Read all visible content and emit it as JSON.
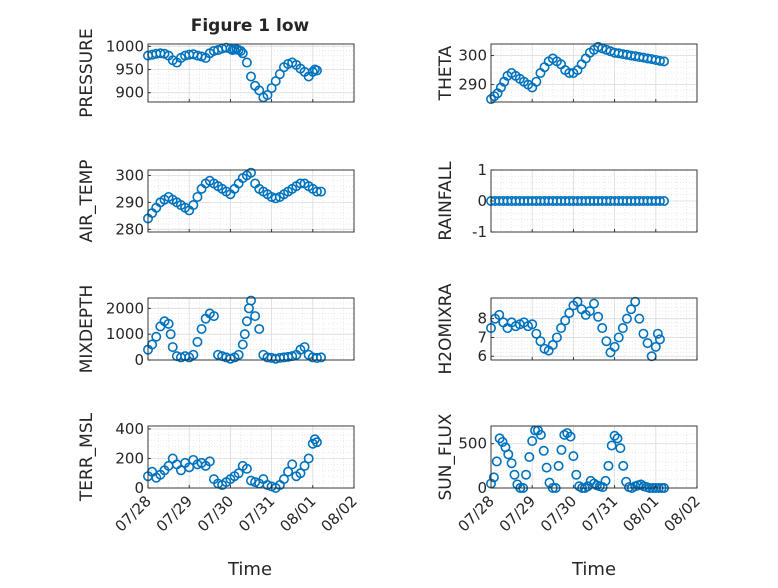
{
  "figure": {
    "title": "Figure 1 low",
    "xlabel": "Time"
  },
  "colors": {
    "marker": "#0072BD",
    "axis": "#262626",
    "grid": "#dcdcdc"
  },
  "chart_data": [
    {
      "type": "scatter",
      "panel": "PRESSURE",
      "ylabel": "PRESSURE",
      "ylim": [
        880,
        1005
      ],
      "yticks": [
        900,
        950,
        1000
      ],
      "ytick_labels": [
        "900",
        "950",
        "1000"
      ],
      "xlim": [
        0,
        5
      ],
      "x": [
        0,
        0.1,
        0.2,
        0.3,
        0.4,
        0.5,
        0.6,
        0.7,
        0.8,
        0.9,
        1.0,
        1.1,
        1.2,
        1.3,
        1.4,
        1.5,
        1.6,
        1.7,
        1.8,
        1.9,
        2.0,
        2.05,
        2.1,
        2.15,
        2.2,
        2.25,
        2.3,
        2.4,
        2.5,
        2.6,
        2.7,
        2.8,
        2.9,
        3.0,
        3.1,
        3.2,
        3.3,
        3.4,
        3.5,
        3.6,
        3.7,
        3.8,
        3.9,
        4.0,
        4.05,
        4.1
      ],
      "y": [
        980,
        982,
        984,
        985,
        984,
        980,
        970,
        965,
        975,
        980,
        982,
        983,
        980,
        978,
        975,
        985,
        990,
        992,
        995,
        997,
        995,
        992,
        993,
        994,
        992,
        990,
        985,
        965,
        935,
        915,
        905,
        890,
        895,
        910,
        925,
        940,
        955,
        962,
        965,
        960,
        952,
        945,
        935,
        945,
        950,
        948
      ]
    },
    {
      "type": "scatter",
      "panel": "THETA",
      "ylabel": "THETA",
      "ylim": [
        284,
        304
      ],
      "yticks": [
        290,
        300
      ],
      "ytick_labels": [
        "290",
        "300"
      ],
      "xlim": [
        0,
        5
      ],
      "x": [
        0,
        0.08,
        0.16,
        0.24,
        0.32,
        0.4,
        0.5,
        0.6,
        0.7,
        0.8,
        0.9,
        1.0,
        1.1,
        1.2,
        1.3,
        1.4,
        1.5,
        1.6,
        1.7,
        1.8,
        1.9,
        2.0,
        2.1,
        2.2,
        2.3,
        2.4,
        2.5,
        2.6,
        2.7,
        2.8,
        2.9,
        3.0,
        3.1,
        3.2,
        3.3,
        3.4,
        3.5,
        3.6,
        3.7,
        3.8,
        3.9,
        4.0,
        4.1,
        4.2
      ],
      "y": [
        285,
        286,
        287,
        289,
        291,
        293,
        294,
        293,
        292,
        291,
        290,
        289,
        291,
        294,
        296,
        298,
        299,
        298,
        297,
        295,
        294,
        294,
        295,
        297,
        299,
        301,
        302,
        303,
        302.5,
        302,
        301.5,
        301,
        300.8,
        300.5,
        300.3,
        300,
        299.8,
        299.5,
        299.3,
        299,
        298.8,
        298.5,
        298.2,
        298
      ]
    },
    {
      "type": "scatter",
      "panel": "AIR_TEMP",
      "ylabel": "AIR_TEMP",
      "ylim": [
        279,
        302
      ],
      "yticks": [
        280,
        290,
        300
      ],
      "ytick_labels": [
        "280",
        "290",
        "300"
      ],
      "xlim": [
        0,
        5
      ],
      "x": [
        0,
        0.1,
        0.2,
        0.3,
        0.4,
        0.5,
        0.6,
        0.7,
        0.8,
        0.9,
        1.0,
        1.1,
        1.2,
        1.3,
        1.4,
        1.5,
        1.6,
        1.7,
        1.8,
        1.9,
        2.0,
        2.1,
        2.2,
        2.3,
        2.4,
        2.5,
        2.6,
        2.7,
        2.8,
        2.9,
        3.0,
        3.1,
        3.2,
        3.3,
        3.4,
        3.5,
        3.6,
        3.7,
        3.8,
        3.9,
        4.0,
        4.1,
        4.2
      ],
      "y": [
        284,
        286,
        288,
        290,
        291,
        292,
        291,
        290,
        289,
        288,
        287,
        289,
        292,
        295,
        297,
        298,
        297,
        296,
        295,
        294,
        293,
        295,
        297,
        299,
        300,
        301,
        297,
        295,
        294,
        293,
        292,
        291.5,
        292,
        293,
        294,
        295,
        296,
        297,
        297,
        296,
        295,
        294,
        294
      ]
    },
    {
      "type": "scatter",
      "panel": "RAINFALL",
      "ylabel": "RAINFALL",
      "ylim": [
        -1,
        1
      ],
      "yticks": [
        -1,
        0,
        1
      ],
      "ytick_labels": [
        "-1",
        "0",
        "1"
      ],
      "xlim": [
        0,
        5
      ],
      "x": [
        0,
        0.1,
        0.2,
        0.3,
        0.4,
        0.5,
        0.6,
        0.7,
        0.8,
        0.9,
        1.0,
        1.1,
        1.2,
        1.3,
        1.4,
        1.5,
        1.6,
        1.7,
        1.8,
        1.9,
        2.0,
        2.1,
        2.2,
        2.3,
        2.4,
        2.5,
        2.6,
        2.7,
        2.8,
        2.9,
        3.0,
        3.1,
        3.2,
        3.3,
        3.4,
        3.5,
        3.6,
        3.7,
        3.8,
        3.9,
        4.0,
        4.1,
        4.2
      ],
      "y": [
        0,
        0,
        0,
        0,
        0,
        0,
        0,
        0,
        0,
        0,
        0,
        0,
        0,
        0,
        0,
        0,
        0,
        0,
        0,
        0,
        0,
        0,
        0,
        0,
        0,
        0,
        0,
        0,
        0,
        0,
        0,
        0,
        0,
        0,
        0,
        0,
        0,
        0,
        0,
        0,
        0,
        0,
        0
      ]
    },
    {
      "type": "scatter",
      "panel": "MIXDEPTH",
      "ylabel": "MIXDEPTH",
      "ylim": [
        0,
        2400
      ],
      "yticks": [
        0,
        1000,
        2000
      ],
      "ytick_labels": [
        "0",
        "1000",
        "2000"
      ],
      "xlim": [
        0,
        5
      ],
      "x": [
        0,
        0.1,
        0.2,
        0.3,
        0.4,
        0.5,
        0.55,
        0.6,
        0.7,
        0.8,
        0.9,
        1.0,
        1.1,
        1.2,
        1.3,
        1.4,
        1.5,
        1.6,
        1.7,
        1.8,
        1.9,
        2.0,
        2.1,
        2.2,
        2.3,
        2.35,
        2.4,
        2.45,
        2.5,
        2.6,
        2.7,
        2.8,
        2.9,
        3.0,
        3.1,
        3.2,
        3.3,
        3.4,
        3.5,
        3.6,
        3.7,
        3.8,
        3.9,
        4.0,
        4.1,
        4.2
      ],
      "y": [
        400,
        600,
        900,
        1300,
        1500,
        1400,
        1000,
        500,
        150,
        100,
        150,
        100,
        200,
        700,
        1200,
        1600,
        1800,
        1700,
        200,
        150,
        100,
        50,
        100,
        200,
        600,
        1000,
        1500,
        2000,
        2300,
        1700,
        1200,
        200,
        100,
        80,
        50,
        80,
        100,
        120,
        150,
        200,
        400,
        500,
        200,
        100,
        80,
        100
      ]
    },
    {
      "type": "scatter",
      "panel": "H2OMIXRA",
      "ylabel": "H2OMIXRA",
      "ylim": [
        5.8,
        9.1
      ],
      "yticks": [
        6,
        7,
        8
      ],
      "ytick_labels": [
        "6",
        "7",
        "8"
      ],
      "xlim": [
        0,
        5
      ],
      "x": [
        0,
        0.1,
        0.2,
        0.3,
        0.4,
        0.5,
        0.6,
        0.7,
        0.8,
        0.9,
        1.0,
        1.1,
        1.2,
        1.3,
        1.4,
        1.5,
        1.6,
        1.7,
        1.8,
        1.9,
        2.0,
        2.1,
        2.2,
        2.3,
        2.4,
        2.5,
        2.6,
        2.7,
        2.8,
        2.9,
        3.0,
        3.1,
        3.2,
        3.3,
        3.4,
        3.5,
        3.6,
        3.7,
        3.8,
        3.9,
        4.0,
        4.05,
        4.1
      ],
      "y": [
        7.5,
        8.0,
        8.2,
        7.8,
        7.5,
        7.8,
        7.6,
        7.7,
        7.8,
        7.6,
        7.7,
        7.2,
        6.8,
        6.4,
        6.3,
        6.6,
        7.0,
        7.5,
        7.9,
        8.3,
        8.7,
        8.9,
        8.5,
        8.2,
        8.4,
        8.8,
        8.1,
        7.5,
        6.8,
        6.2,
        6.5,
        7.0,
        7.5,
        8.0,
        8.5,
        8.9,
        8.0,
        7.2,
        6.7,
        6.0,
        6.5,
        7.2,
        6.9
      ]
    },
    {
      "type": "scatter",
      "panel": "TERR_MSL",
      "ylabel": "TERR_MSL",
      "ylim": [
        0,
        420
      ],
      "yticks": [
        0,
        200,
        400
      ],
      "ytick_labels": [
        "0",
        "200",
        "400"
      ],
      "xlim": [
        0,
        5
      ],
      "x": [
        0,
        0.1,
        0.2,
        0.3,
        0.4,
        0.5,
        0.6,
        0.7,
        0.8,
        0.9,
        1.0,
        1.1,
        1.2,
        1.3,
        1.4,
        1.5,
        1.6,
        1.7,
        1.8,
        1.9,
        2.0,
        2.1,
        2.2,
        2.3,
        2.4,
        2.5,
        2.6,
        2.7,
        2.8,
        2.9,
        3.0,
        3.1,
        3.2,
        3.3,
        3.4,
        3.5,
        3.6,
        3.7,
        3.8,
        3.9,
        4.0,
        4.05,
        4.1
      ],
      "y": [
        80,
        110,
        70,
        90,
        120,
        150,
        200,
        160,
        120,
        170,
        140,
        190,
        160,
        170,
        150,
        180,
        60,
        30,
        20,
        40,
        60,
        80,
        100,
        150,
        130,
        50,
        40,
        30,
        60,
        20,
        10,
        0,
        20,
        60,
        110,
        160,
        80,
        100,
        150,
        200,
        300,
        330,
        310
      ]
    },
    {
      "type": "scatter",
      "panel": "SUN_FLUX",
      "ylabel": "SUN_FLUX",
      "ylim": [
        0,
        700
      ],
      "yticks": [
        0,
        500
      ],
      "ytick_labels": [
        "0",
        "500"
      ],
      "xlim": [
        0,
        5
      ],
      "x": [
        0,
        0.07,
        0.14,
        0.21,
        0.28,
        0.35,
        0.42,
        0.5,
        0.57,
        0.64,
        0.71,
        0.78,
        0.85,
        0.93,
        1.0,
        1.07,
        1.14,
        1.21,
        1.28,
        1.35,
        1.42,
        1.5,
        1.57,
        1.64,
        1.71,
        1.78,
        1.85,
        1.93,
        2.0,
        2.07,
        2.14,
        2.21,
        2.28,
        2.35,
        2.42,
        2.5,
        2.57,
        2.64,
        2.71,
        2.78,
        2.85,
        2.93,
        3.0,
        3.07,
        3.14,
        3.21,
        3.28,
        3.35,
        3.42,
        3.5,
        3.57,
        3.64,
        3.71,
        3.78,
        3.85,
        3.93,
        4.0,
        4.07,
        4.14,
        4.2
      ],
      "y": [
        50,
        120,
        300,
        560,
        520,
        460,
        380,
        280,
        150,
        40,
        0,
        0,
        150,
        350,
        530,
        650,
        650,
        600,
        420,
        230,
        60,
        0,
        0,
        250,
        430,
        600,
        620,
        580,
        360,
        150,
        20,
        0,
        0,
        20,
        80,
        50,
        30,
        20,
        10,
        80,
        250,
        480,
        590,
        560,
        450,
        250,
        70,
        10,
        0,
        20,
        30,
        40,
        20,
        10,
        0,
        0,
        0,
        0,
        0,
        0
      ]
    }
  ],
  "xaxis": {
    "tick_values": [
      0,
      1,
      2,
      3,
      4,
      5
    ],
    "tick_labels": [
      "07/28",
      "07/29",
      "07/30",
      "07/31",
      "08/01",
      "08/02"
    ]
  }
}
